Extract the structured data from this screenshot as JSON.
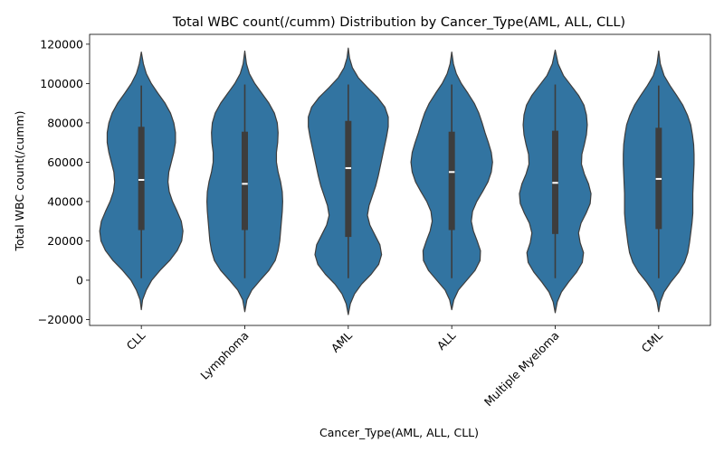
{
  "chart_data": {
    "type": "violin",
    "title": "Total WBC count(/cumm) Distribution by Cancer_Type(AML, ALL, CLL)",
    "xlabel": "Cancer_Type(AML, ALL, CLL)",
    "ylabel": "Total WBC count(/cumm)",
    "ylim": [
      -23000,
      125000
    ],
    "yticks": [
      -20000,
      0,
      20000,
      40000,
      60000,
      80000,
      100000,
      120000
    ],
    "ytick_labels": [
      "−20000",
      "0",
      "20000",
      "40000",
      "60000",
      "80000",
      "100000",
      "120000"
    ],
    "categories": [
      "CLL",
      "Lymphoma",
      "AML",
      "ALL",
      "Multiple Myeloma",
      "CML"
    ],
    "xtick_rotation_deg": 45,
    "grid": false,
    "colors": {
      "violin_fill": "#3274a1",
      "violin_edge": "#3d3d3d",
      "box": "#3d3d3d",
      "median": "#ffffff",
      "axis": "#000000"
    },
    "violins": [
      {
        "category": "CLL",
        "min": 1000,
        "q1": 25500,
        "median": 51000,
        "q3": 78000,
        "max": 99000,
        "profile": [
          [
            -15000,
            0
          ],
          [
            -10000,
            0.03
          ],
          [
            -5000,
            0.12
          ],
          [
            0,
            0.25
          ],
          [
            5000,
            0.45
          ],
          [
            10000,
            0.68
          ],
          [
            15000,
            0.86
          ],
          [
            20000,
            0.97
          ],
          [
            25000,
            1.0
          ],
          [
            30000,
            0.96
          ],
          [
            35000,
            0.86
          ],
          [
            40000,
            0.75
          ],
          [
            45000,
            0.67
          ],
          [
            50000,
            0.64
          ],
          [
            55000,
            0.66
          ],
          [
            60000,
            0.72
          ],
          [
            65000,
            0.78
          ],
          [
            70000,
            0.82
          ],
          [
            75000,
            0.82
          ],
          [
            80000,
            0.78
          ],
          [
            85000,
            0.7
          ],
          [
            90000,
            0.57
          ],
          [
            95000,
            0.4
          ],
          [
            100000,
            0.24
          ],
          [
            105000,
            0.12
          ],
          [
            110000,
            0.05
          ],
          [
            116000,
            0
          ]
        ]
      },
      {
        "category": "Lymphoma",
        "min": 1000,
        "q1": 25500,
        "median": 49000,
        "q3": 75500,
        "max": 99500,
        "profile": [
          [
            -16000,
            0
          ],
          [
            -10000,
            0.05
          ],
          [
            -5000,
            0.17
          ],
          [
            0,
            0.37
          ],
          [
            5000,
            0.58
          ],
          [
            10000,
            0.73
          ],
          [
            15000,
            0.8
          ],
          [
            20000,
            0.84
          ],
          [
            25000,
            0.86
          ],
          [
            30000,
            0.88
          ],
          [
            35000,
            0.9
          ],
          [
            40000,
            0.91
          ],
          [
            45000,
            0.9
          ],
          [
            50000,
            0.86
          ],
          [
            55000,
            0.8
          ],
          [
            60000,
            0.76
          ],
          [
            65000,
            0.76
          ],
          [
            70000,
            0.79
          ],
          [
            75000,
            0.8
          ],
          [
            80000,
            0.78
          ],
          [
            85000,
            0.71
          ],
          [
            90000,
            0.58
          ],
          [
            95000,
            0.41
          ],
          [
            100000,
            0.24
          ],
          [
            105000,
            0.11
          ],
          [
            110000,
            0.04
          ],
          [
            116500,
            0
          ]
        ]
      },
      {
        "category": "AML",
        "min": 1000,
        "q1": 22000,
        "median": 57000,
        "q3": 81000,
        "max": 99500,
        "profile": [
          [
            -17500,
            0
          ],
          [
            -12000,
            0.05
          ],
          [
            -7000,
            0.15
          ],
          [
            -2000,
            0.32
          ],
          [
            3000,
            0.55
          ],
          [
            8000,
            0.73
          ],
          [
            13000,
            0.8
          ],
          [
            18000,
            0.76
          ],
          [
            23000,
            0.64
          ],
          [
            28000,
            0.52
          ],
          [
            33000,
            0.46
          ],
          [
            38000,
            0.5
          ],
          [
            43000,
            0.58
          ],
          [
            48000,
            0.66
          ],
          [
            53000,
            0.72
          ],
          [
            58000,
            0.77
          ],
          [
            63000,
            0.82
          ],
          [
            68000,
            0.87
          ],
          [
            73000,
            0.92
          ],
          [
            78000,
            0.96
          ],
          [
            83000,
            0.96
          ],
          [
            88000,
            0.88
          ],
          [
            93000,
            0.7
          ],
          [
            98000,
            0.46
          ],
          [
            103000,
            0.24
          ],
          [
            108000,
            0.1
          ],
          [
            113000,
            0.03
          ],
          [
            118000,
            0
          ]
        ]
      },
      {
        "category": "ALL",
        "min": 1000,
        "q1": 25500,
        "median": 55000,
        "q3": 75500,
        "max": 99500,
        "profile": [
          [
            -15000,
            0
          ],
          [
            -10000,
            0.05
          ],
          [
            -5000,
            0.16
          ],
          [
            0,
            0.36
          ],
          [
            5000,
            0.56
          ],
          [
            10000,
            0.68
          ],
          [
            15000,
            0.69
          ],
          [
            20000,
            0.61
          ],
          [
            25000,
            0.52
          ],
          [
            30000,
            0.47
          ],
          [
            35000,
            0.5
          ],
          [
            40000,
            0.6
          ],
          [
            45000,
            0.74
          ],
          [
            50000,
            0.87
          ],
          [
            55000,
            0.95
          ],
          [
            60000,
            0.98
          ],
          [
            65000,
            0.95
          ],
          [
            70000,
            0.88
          ],
          [
            75000,
            0.8
          ],
          [
            80000,
            0.73
          ],
          [
            85000,
            0.65
          ],
          [
            90000,
            0.54
          ],
          [
            95000,
            0.39
          ],
          [
            100000,
            0.23
          ],
          [
            105000,
            0.11
          ],
          [
            110000,
            0.04
          ],
          [
            116000,
            0
          ]
        ]
      },
      {
        "category": "Multiple Myeloma",
        "min": 1000,
        "q1": 23500,
        "median": 49500,
        "q3": 76000,
        "max": 99500,
        "profile": [
          [
            -16500,
            0
          ],
          [
            -11000,
            0.05
          ],
          [
            -6000,
            0.15
          ],
          [
            -1000,
            0.32
          ],
          [
            4000,
            0.51
          ],
          [
            9000,
            0.65
          ],
          [
            14000,
            0.68
          ],
          [
            19000,
            0.6
          ],
          [
            24000,
            0.56
          ],
          [
            29000,
            0.62
          ],
          [
            34000,
            0.74
          ],
          [
            39000,
            0.84
          ],
          [
            44000,
            0.86
          ],
          [
            49000,
            0.8
          ],
          [
            54000,
            0.7
          ],
          [
            59000,
            0.63
          ],
          [
            64000,
            0.64
          ],
          [
            69000,
            0.7
          ],
          [
            74000,
            0.75
          ],
          [
            79000,
            0.77
          ],
          [
            84000,
            0.75
          ],
          [
            89000,
            0.69
          ],
          [
            94000,
            0.56
          ],
          [
            99000,
            0.38
          ],
          [
            104000,
            0.2
          ],
          [
            110000,
            0.07
          ],
          [
            117000,
            0
          ]
        ]
      },
      {
        "category": "CML",
        "min": 1000,
        "q1": 26000,
        "median": 51500,
        "q3": 77500,
        "max": 99000,
        "profile": [
          [
            -16000,
            0
          ],
          [
            -11000,
            0.04
          ],
          [
            -6000,
            0.13
          ],
          [
            -1000,
            0.29
          ],
          [
            4000,
            0.48
          ],
          [
            9000,
            0.62
          ],
          [
            14000,
            0.7
          ],
          [
            19000,
            0.74
          ],
          [
            24000,
            0.77
          ],
          [
            29000,
            0.8
          ],
          [
            34000,
            0.82
          ],
          [
            39000,
            0.82
          ],
          [
            44000,
            0.82
          ],
          [
            49000,
            0.83
          ],
          [
            54000,
            0.84
          ],
          [
            59000,
            0.85
          ],
          [
            64000,
            0.85
          ],
          [
            69000,
            0.84
          ],
          [
            74000,
            0.81
          ],
          [
            79000,
            0.77
          ],
          [
            84000,
            0.69
          ],
          [
            89000,
            0.58
          ],
          [
            94000,
            0.43
          ],
          [
            99000,
            0.27
          ],
          [
            104000,
            0.13
          ],
          [
            110000,
            0.04
          ],
          [
            116500,
            0
          ]
        ]
      }
    ]
  }
}
